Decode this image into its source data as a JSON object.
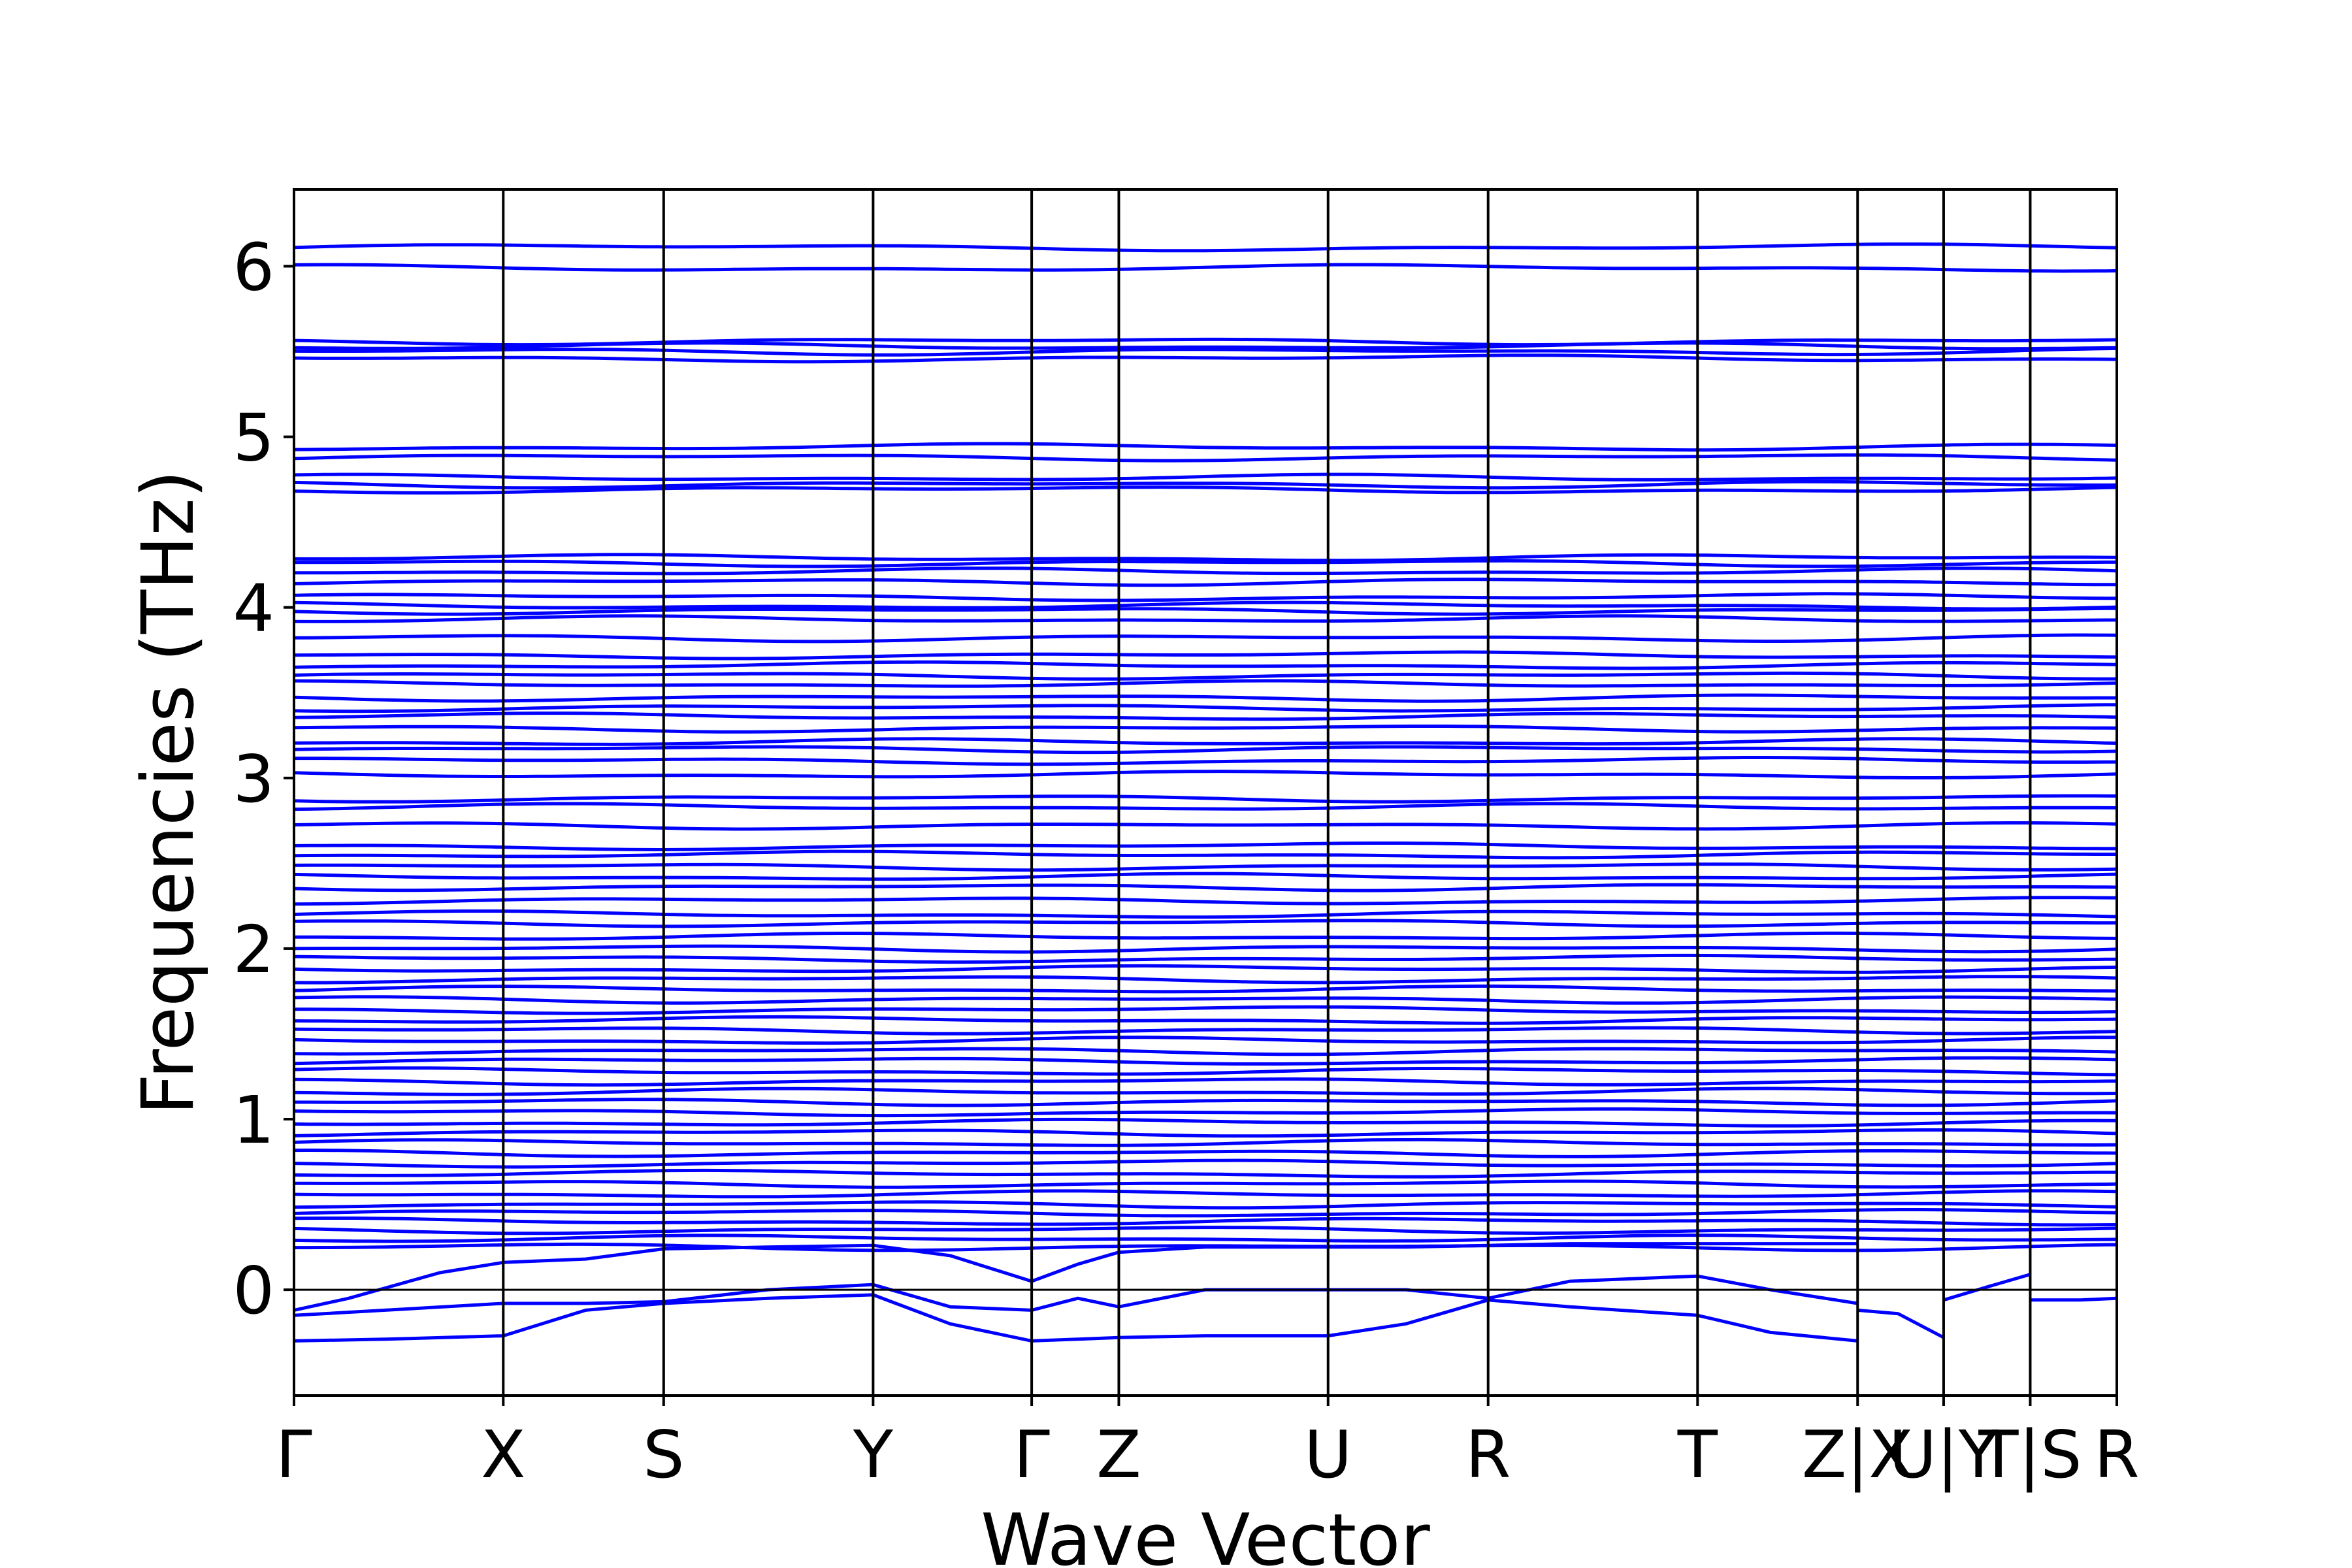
{
  "chart_data": {
    "type": "line",
    "xlabel": "Wave Vector",
    "ylabel": "Frequencies (THz)",
    "ylim": [
      -0.62,
      6.45
    ],
    "yticks": [
      0,
      1,
      2,
      3,
      4,
      5,
      6
    ],
    "grid": false,
    "zero_line": true,
    "line_color": "#0000ff",
    "path_labels": [
      "Γ",
      "X",
      "S",
      "Y",
      "Γ",
      "Z",
      "U",
      "R",
      "T",
      "Z|X",
      "U|Y",
      "T|S",
      "R"
    ],
    "path_positions": [
      0.0,
      0.1148,
      0.2028,
      0.3177,
      0.4047,
      0.4525,
      0.5673,
      0.6551,
      0.77,
      0.8578,
      0.905,
      0.9525,
      1.0
    ],
    "segment_breaks": [
      0.8578,
      0.905,
      0.9525
    ],
    "bands": {
      "flat_levels": [
        6.11,
        5.99,
        5.56,
        5.53,
        5.5,
        5.46,
        4.94,
        4.88,
        4.76,
        4.72,
        4.69,
        4.29,
        4.26,
        4.21,
        4.15,
        4.06,
        4.01,
        3.98,
        3.93,
        3.82,
        3.72,
        3.66,
        3.6,
        3.55,
        3.47,
        3.41,
        3.36,
        3.29,
        3.21,
        3.17,
        3.1,
        3.02,
        2.88,
        2.83,
        2.72,
        2.6,
        2.55,
        2.48,
        2.42,
        2.36,
        2.28,
        2.2,
        2.15,
        2.07,
        2.0,
        1.94,
        1.88,
        1.82,
        1.76,
        1.7,
        1.64,
        1.58,
        1.52,
        1.46,
        1.4,
        1.34,
        1.28,
        1.22,
        1.16,
        1.1,
        1.04,
        0.98,
        0.92,
        0.86,
        0.8,
        0.74,
        0.68,
        0.62,
        0.56,
        0.5,
        0.45,
        0.4,
        0.35,
        0.3,
        0.25
      ],
      "acoustic_branches": [
        {
          "x": [
            0.0,
            0.03,
            0.08,
            0.1148,
            0.16,
            0.2028,
            0.26,
            0.3177,
            0.36,
            0.4047,
            0.43,
            0.4525,
            0.5,
            0.5673,
            0.61,
            0.6551,
            0.7,
            0.77,
            0.81,
            0.8578
          ],
          "y": [
            -0.12,
            -0.05,
            0.1,
            0.16,
            0.18,
            0.24,
            0.25,
            0.26,
            0.2,
            0.05,
            0.15,
            0.22,
            0.25,
            0.25,
            0.25,
            0.26,
            0.27,
            0.27,
            0.27,
            0.27
          ]
        },
        {
          "x": [
            0.0,
            0.05,
            0.1148,
            0.16,
            0.2028,
            0.26,
            0.3177,
            0.36,
            0.4047,
            0.43,
            0.4525,
            0.5,
            0.5673,
            0.61,
            0.6551,
            0.7,
            0.77,
            0.81,
            0.8578
          ],
          "y": [
            -0.15,
            -0.12,
            -0.08,
            -0.08,
            -0.07,
            0.0,
            0.03,
            -0.1,
            -0.12,
            -0.05,
            -0.1,
            0.0,
            0.0,
            0.0,
            -0.05,
            0.05,
            0.08,
            0.0,
            -0.08
          ]
        },
        {
          "x": [
            0.0,
            0.05,
            0.1148,
            0.16,
            0.2028,
            0.26,
            0.3177,
            0.36,
            0.4047,
            0.43,
            0.4525,
            0.5,
            0.5673,
            0.61,
            0.6551,
            0.7,
            0.77,
            0.81,
            0.8578
          ],
          "y": [
            -0.3,
            -0.29,
            -0.27,
            -0.12,
            -0.08,
            -0.05,
            -0.03,
            -0.2,
            -0.3,
            -0.29,
            -0.28,
            -0.27,
            -0.27,
            -0.2,
            -0.06,
            -0.1,
            -0.15,
            -0.25,
            -0.3
          ]
        },
        {
          "x": [
            0.8578,
            0.88,
            0.905
          ],
          "y": [
            -0.12,
            -0.14,
            -0.28
          ]
        },
        {
          "x": [
            0.905,
            0.93,
            0.9525
          ],
          "y": [
            -0.06,
            0.02,
            0.09
          ]
        },
        {
          "x": [
            0.9525,
            0.98,
            1.0
          ],
          "y": [
            -0.06,
            -0.06,
            -0.05
          ]
        }
      ]
    }
  }
}
